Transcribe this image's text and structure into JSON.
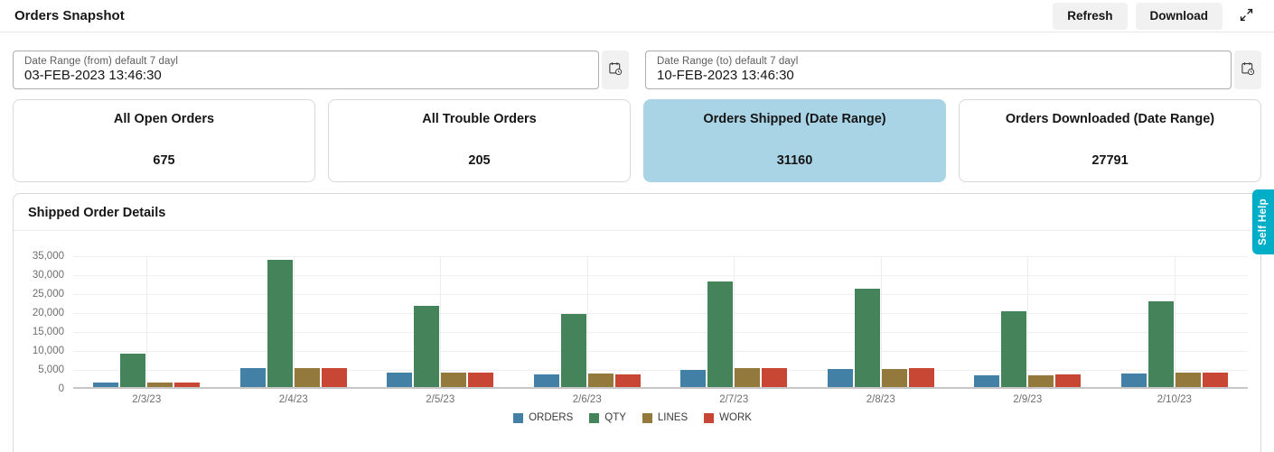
{
  "header": {
    "title": "Orders Snapshot",
    "refresh_label": "Refresh",
    "download_label": "Download",
    "expand_icon": "expand-diagonal-arrows"
  },
  "date_range": {
    "from": {
      "label": "Date Range (from) default 7 dayl",
      "value": "03-FEB-2023 13:46:30",
      "icon": "calendar-clock-icon"
    },
    "to": {
      "label": "Date Range (to) default 7 dayl",
      "value": "10-FEB-2023 13:46:30",
      "icon": "calendar-clock-icon"
    }
  },
  "kpis": [
    {
      "label": "All Open Orders",
      "value": "675",
      "selected": false
    },
    {
      "label": "All Trouble Orders",
      "value": "205",
      "selected": false
    },
    {
      "label": "Orders Shipped (Date Range)",
      "value": "31160",
      "selected": true
    },
    {
      "label": "Orders Downloaded (Date Range)",
      "value": "27791",
      "selected": false
    }
  ],
  "chart_section": {
    "title": "Shipped Order Details"
  },
  "self_help": {
    "label": "Self Help",
    "color": "#00aec7"
  },
  "colors": {
    "kpi_selected_bg": "#a9d4e6",
    "button_bg": "#f1f1f1",
    "grid": "#efefef",
    "axis_text": "#6e6e6e"
  },
  "chart_data": {
    "type": "bar",
    "title": "Shipped Order Details",
    "categories": [
      "2/3/23",
      "2/4/23",
      "2/5/23",
      "2/6/23",
      "2/7/23",
      "2/8/23",
      "2/9/23",
      "2/10/23"
    ],
    "series": [
      {
        "name": "ORDERS",
        "color": "#4380a5",
        "values": [
          1200,
          5100,
          3900,
          3400,
          4500,
          4800,
          3000,
          3600
        ]
      },
      {
        "name": "QTY",
        "color": "#45835b",
        "values": [
          8800,
          33700,
          21400,
          19300,
          27800,
          26000,
          19900,
          22600
        ]
      },
      {
        "name": "LINES",
        "color": "#94793d",
        "values": [
          1100,
          5100,
          3900,
          3600,
          4900,
          4800,
          3200,
          3800
        ]
      },
      {
        "name": "WORK",
        "color": "#c74634",
        "values": [
          1200,
          5100,
          3900,
          3400,
          4900,
          5000,
          3300,
          3800
        ]
      }
    ],
    "xlabel": "",
    "ylabel": "",
    "ylim": [
      0,
      35000
    ],
    "ytick_step": 5000,
    "grid": true,
    "legend_position": "bottom"
  }
}
